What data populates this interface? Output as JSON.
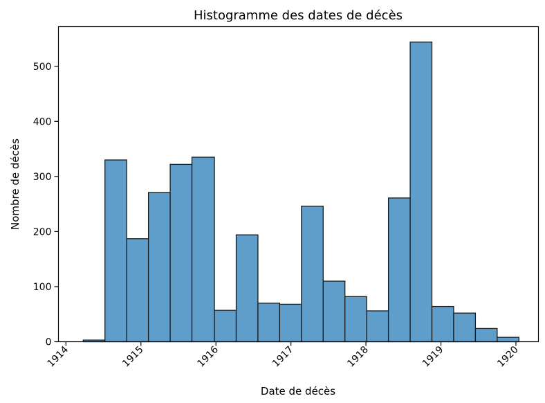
{
  "chart_data": {
    "type": "bar",
    "title": "Histogramme des dates de décès",
    "xlabel": "Date de décès",
    "ylabel": "Nombre de décès",
    "bin_edges": [
      1914.23,
      1914.52,
      1914.81,
      1915.1,
      1915.39,
      1915.68,
      1915.98,
      1916.27,
      1916.56,
      1916.85,
      1917.14,
      1917.43,
      1917.72,
      1918.01,
      1918.3,
      1918.59,
      1918.88,
      1919.17,
      1919.46,
      1919.75,
      1920.04
    ],
    "values": [
      3,
      330,
      187,
      271,
      322,
      335,
      57,
      194,
      70,
      68,
      246,
      110,
      82,
      56,
      261,
      544,
      64,
      52,
      24,
      8
    ],
    "xticks": [
      {
        "label": "1914",
        "value": 1914.0
      },
      {
        "label": "1915",
        "value": 1915.0
      },
      {
        "label": "1916",
        "value": 1916.0
      },
      {
        "label": "1917",
        "value": 1917.0
      },
      {
        "label": "1918",
        "value": 1918.0
      },
      {
        "label": "1919",
        "value": 1919.0
      },
      {
        "label": "1920",
        "value": 1920.0
      }
    ],
    "yticks": [
      0,
      100,
      200,
      300,
      400,
      500
    ],
    "xlim": [
      1913.9,
      1920.3
    ],
    "ylim": [
      0,
      572
    ],
    "bar_color": "#5f9ecb",
    "edge_color": "#1a1a1a",
    "grid": false,
    "legend": null
  }
}
